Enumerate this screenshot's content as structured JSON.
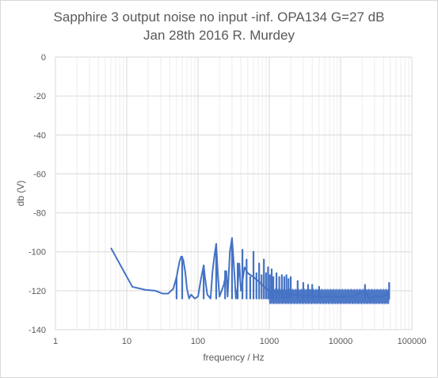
{
  "chart_data": {
    "type": "line",
    "title": "Sapphire 3 output noise no input -inf. OPA134 G=27 dB",
    "subtitle": "Jan 28th 2016 R. Murdey",
    "xlabel": "frequency / Hz",
    "ylabel": "db (V)",
    "xscale": "log",
    "xlim": [
      1,
      100000
    ],
    "ylim": [
      -140,
      0
    ],
    "x_ticks": [
      "1",
      "10",
      "100",
      "1000",
      "10000",
      "100000"
    ],
    "y_ticks": [
      "0",
      "-20",
      "-40",
      "-60",
      "-80",
      "-100",
      "-120",
      "-140"
    ],
    "grid": true,
    "series": [
      {
        "color": "#4472c4",
        "x": [
          6,
          12,
          18,
          25,
          32,
          38,
          45,
          50,
          55,
          58,
          62,
          66,
          70,
          75,
          80,
          90,
          100,
          110,
          120,
          125,
          135,
          150,
          160,
          170,
          180,
          190,
          200,
          230,
          250,
          260,
          280,
          300,
          320,
          340,
          360,
          380,
          400,
          450,
          500,
          600,
          700,
          800,
          900,
          1000,
          1500,
          2000,
          3000,
          5000,
          8000,
          15000,
          22000,
          25000,
          30000,
          40000,
          48000
        ],
        "y": [
          -98,
          -118,
          -119.5,
          -120,
          -121.5,
          -121.5,
          -119,
          -113,
          -105,
          -102.5,
          -104,
          -110,
          -119,
          -124,
          -122,
          -124,
          -123,
          -114,
          -107,
          -113,
          -122,
          -124,
          -110,
          -102,
          -96,
          -112,
          -123,
          -117,
          -110,
          -123,
          -100,
          -93,
          -108,
          -124,
          -118,
          -106,
          -120,
          -108,
          -111,
          -113,
          -115,
          -117,
          -119,
          -120,
          -121,
          -122,
          -122.5,
          -123,
          -123,
          -123,
          -120,
          -124,
          -123,
          -123,
          -121
        ]
      }
    ],
    "spike_peaks": [
      {
        "f": 50,
        "db": -113
      },
      {
        "f": 60,
        "db": -102.5
      },
      {
        "f": 120,
        "db": -107
      },
      {
        "f": 180,
        "db": -96
      },
      {
        "f": 240,
        "db": -110
      },
      {
        "f": 300,
        "db": -93
      },
      {
        "f": 360,
        "db": -106
      },
      {
        "f": 420,
        "db": -99
      },
      {
        "f": 480,
        "db": -104
      },
      {
        "f": 540,
        "db": -113
      },
      {
        "f": 600,
        "db": -100
      },
      {
        "f": 660,
        "db": -111
      },
      {
        "f": 720,
        "db": -106
      },
      {
        "f": 780,
        "db": -112
      },
      {
        "f": 840,
        "db": -104
      },
      {
        "f": 900,
        "db": -111
      },
      {
        "f": 960,
        "db": -108
      },
      {
        "f": 1020,
        "db": -112
      },
      {
        "f": 1080,
        "db": -109
      },
      {
        "f": 1140,
        "db": -113
      },
      {
        "f": 1260,
        "db": -111
      },
      {
        "f": 1380,
        "db": -113
      },
      {
        "f": 1500,
        "db": -112
      },
      {
        "f": 1620,
        "db": -113
      },
      {
        "f": 1740,
        "db": -112
      },
      {
        "f": 1860,
        "db": -114
      },
      {
        "f": 2000,
        "db": -113
      },
      {
        "f": 2500,
        "db": -115
      },
      {
        "f": 3000,
        "db": -116
      },
      {
        "f": 3500,
        "db": -117
      },
      {
        "f": 4000,
        "db": -117
      },
      {
        "f": 5000,
        "db": -118
      },
      {
        "f": 22000,
        "db": -117
      },
      {
        "f": 48000,
        "db": -116
      }
    ],
    "noise_floor": {
      "start_f": 1000,
      "end_f": 48000,
      "top_db": -119,
      "bottom_db": -127
    }
  }
}
